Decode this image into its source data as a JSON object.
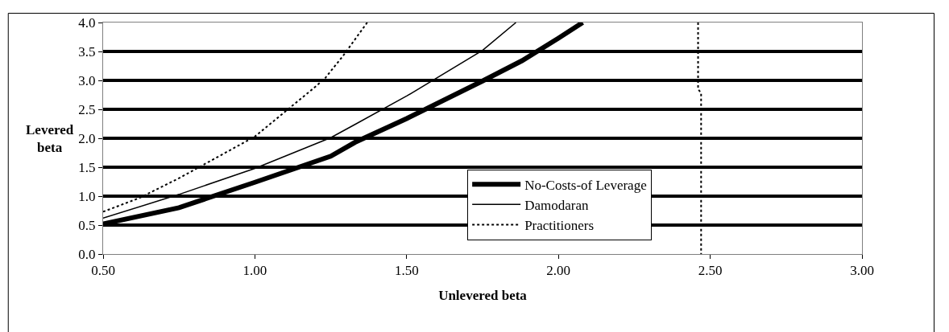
{
  "chart_data": {
    "type": "line",
    "xlabel": "Unlevered beta",
    "ylabel": "Levered beta",
    "xlim": [
      0.5,
      3.0
    ],
    "xticks": [
      {
        "value": 0.5,
        "label": "0.50"
      },
      {
        "value": 1.0,
        "label": "1.00"
      },
      {
        "value": 1.5,
        "label": "1.50"
      },
      {
        "value": 2.0,
        "label": "2.00"
      },
      {
        "value": 2.5,
        "label": "2.50"
      },
      {
        "value": 3.0,
        "label": "3.00"
      }
    ],
    "ylim": [
      0,
      4
    ],
    "yticks": [
      {
        "value": 0,
        "label": "0.0"
      },
      {
        "value": 0.5,
        "label": "0.5"
      },
      {
        "value": 1,
        "label": "1.0"
      },
      {
        "value": 1.5,
        "label": "1.5"
      },
      {
        "value": 2,
        "label": "2.0"
      },
      {
        "value": 2.5,
        "label": "2.5"
      },
      {
        "value": 3,
        "label": "3.0"
      },
      {
        "value": 3.5,
        "label": "3.5"
      },
      {
        "value": 4,
        "label": "4.0"
      }
    ],
    "grid": "y",
    "legend": "bottom",
    "marker": "none",
    "series": [
      {
        "name": "No-Costs-of Leverage",
        "color": "#000000",
        "line_style": "solid",
        "x": [
          0.5,
          0.75,
          1.0,
          1.25,
          1.33,
          1.5,
          1.75,
          1.88,
          2.0,
          2.08
        ],
        "values": [
          0.52,
          0.8,
          1.24,
          1.69,
          1.93,
          2.34,
          2.99,
          3.34,
          3.73,
          4.0
        ]
      },
      {
        "name": "Damodaran",
        "color": "#000000",
        "line_style": "solid",
        "x": [
          0.5,
          0.75,
          1.0,
          1.25,
          1.33,
          1.5,
          1.75,
          1.86
        ],
        "values": [
          0.62,
          1.03,
          1.48,
          2.01,
          2.24,
          2.73,
          3.52,
          4.0
        ]
      },
      {
        "name": "Practitioners",
        "color": "#000000",
        "line_style": "dotted",
        "x": [
          0.5,
          0.62,
          0.75,
          1.0,
          1.19,
          1.23,
          1.29,
          1.37,
          2.0,
          2.46,
          2.46,
          2.47,
          2.47
        ],
        "values": [
          0.73,
          0.97,
          1.31,
          2.03,
          2.85,
          3.03,
          3.42,
          4.0,
          null,
          4.0,
          2.85,
          2.78,
          0.0
        ]
      }
    ]
  }
}
